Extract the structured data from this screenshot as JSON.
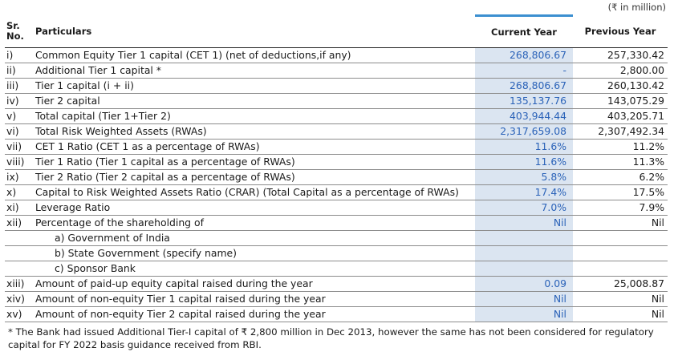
{
  "unit_note": "(₹ in million)",
  "header": {
    "sr_no": "Sr. No.",
    "particulars": "Particulars",
    "current_year": "Current Year",
    "previous_year": "Previous Year"
  },
  "rows": [
    {
      "sr": "i)",
      "particulars": "Common Equity Tier 1 capital (CET 1) (net of deductions,if any)",
      "current": "268,806.67",
      "previous": "257,330.42"
    },
    {
      "sr": "ii)",
      "particulars": "Additional Tier 1 capital *",
      "current": "-",
      "previous": "2,800.00"
    },
    {
      "sr": "iii)",
      "particulars": "Tier 1 capital (i + ii)",
      "current": "268,806.67",
      "previous": "260,130.42"
    },
    {
      "sr": "iv)",
      "particulars": "Tier 2 capital",
      "current": "135,137.76",
      "previous": "143,075.29"
    },
    {
      "sr": "v)",
      "particulars": "Total capital (Tier 1+Tier 2)",
      "current": "403,944.44",
      "previous": "403,205.71"
    },
    {
      "sr": "vi)",
      "particulars": "Total Risk Weighted Assets (RWAs)",
      "current": "2,317,659.08",
      "previous": "2,307,492.34"
    },
    {
      "sr": "vii)",
      "particulars": "CET 1 Ratio (CET 1 as a percentage of RWAs)",
      "current": "11.6%",
      "previous": "11.2%"
    },
    {
      "sr": "viii)",
      "particulars": "Tier 1 Ratio (Tier 1 capital as a percentage of RWAs)",
      "current": "11.6%",
      "previous": "11.3%"
    },
    {
      "sr": "ix)",
      "particulars": "Tier 2 Ratio (Tier 2 capital as a percentage of RWAs)",
      "current": "5.8%",
      "previous": "6.2%"
    },
    {
      "sr": "x)",
      "particulars": "Capital to Risk Weighted Assets Ratio (CRAR) (Total Capital as a percentage of RWAs)",
      "current": "17.4%",
      "previous": "17.5%"
    },
    {
      "sr": "xi)",
      "particulars": "Leverage Ratio",
      "current": "7.0%",
      "previous": "7.9%"
    },
    {
      "sr": "xii)",
      "particulars": "Percentage of the shareholding of",
      "current": "Nil",
      "previous": "Nil"
    },
    {
      "sr": "",
      "particulars": "a)  Government of India",
      "current": "",
      "previous": "",
      "sub": true
    },
    {
      "sr": "",
      "particulars": "b)  State Government (specify name)",
      "current": "",
      "previous": "",
      "sub": true
    },
    {
      "sr": "",
      "particulars": "c)  Sponsor Bank",
      "current": "",
      "previous": "",
      "sub": true
    },
    {
      "sr": "xiii)",
      "particulars": "Amount of paid-up equity capital raised during the year",
      "current": "0.09",
      "previous": "25,008.87"
    },
    {
      "sr": "xiv)",
      "particulars": "Amount of non-equity Tier 1 capital raised during the year",
      "current": "Nil",
      "previous": "Nil"
    },
    {
      "sr": "xv)",
      "particulars": "Amount of non-equity Tier 2 capital raised during the year",
      "current": "Nil",
      "previous": "Nil"
    }
  ],
  "footnote": "* The Bank had issued Additional Tier-I capital of ₹ 2,800 million in Dec 2013, however the same has not been considered for regulatory capital for FY 2022 basis guidance received from RBI.",
  "colors": {
    "accent": "#3c8fd0",
    "current_col_bg": "#dbe5f1",
    "current_col_text": "#2a62b8"
  }
}
